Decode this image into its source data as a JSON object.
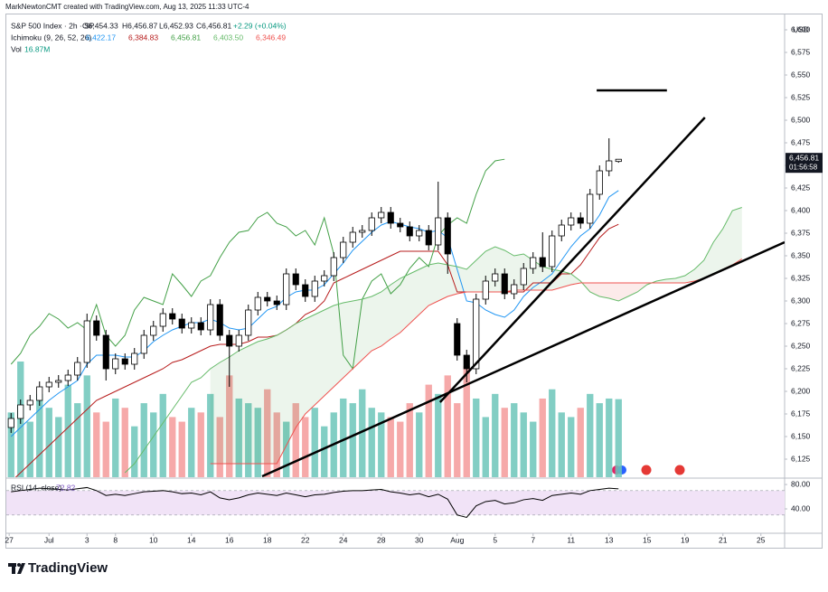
{
  "chart_data": {
    "type": "candlestick",
    "title": "MarkNewtonCMT created with TradingView.com, Aug 13, 2025 11:33 UTC-4",
    "symbol": "S&P 500 Index · 2h · SP",
    "ohlc_labels": [
      "O6,454.33",
      "H6,456.87",
      "L6,452.93",
      "C6,456.81"
    ],
    "change_label": "+2.29 (+0.04%)",
    "currency": "USD",
    "last_price_label": "6,456.81",
    "countdown": "01:56:58",
    "branding": "TradingView",
    "xlim": [
      -0.5,
      81.5
    ],
    "xticks": [
      {
        "value": -0.2,
        "label": "27"
      },
      {
        "value": 4,
        "label": "Jul"
      },
      {
        "value": 8,
        "label": "3"
      },
      {
        "value": 11,
        "label": "8"
      },
      {
        "value": 15,
        "label": "10"
      },
      {
        "value": 19,
        "label": "14"
      },
      {
        "value": 23,
        "label": "16"
      },
      {
        "value": 27,
        "label": "18"
      },
      {
        "value": 31,
        "label": "22"
      },
      {
        "value": 35,
        "label": "24"
      },
      {
        "value": 39,
        "label": "28"
      },
      {
        "value": 43,
        "label": "30"
      },
      {
        "value": 47,
        "label": "Aug"
      },
      {
        "value": 51,
        "label": "5"
      },
      {
        "value": 55,
        "label": "7"
      },
      {
        "value": 59,
        "label": "11"
      },
      {
        "value": 63,
        "label": "13"
      },
      {
        "value": 67,
        "label": "15"
      },
      {
        "value": 71,
        "label": "19"
      },
      {
        "value": 75,
        "label": "21"
      },
      {
        "value": 79,
        "label": "25"
      }
    ],
    "ylim": [
      6105,
      6617
    ],
    "yticks": [
      {
        "value": 6125,
        "label": "6,125"
      },
      {
        "value": 6150,
        "label": "6,150"
      },
      {
        "value": 6175,
        "label": "6,175"
      },
      {
        "value": 6200,
        "label": "6,200"
      },
      {
        "value": 6225,
        "label": "6,225"
      },
      {
        "value": 6250,
        "label": "6,250"
      },
      {
        "value": 6275,
        "label": "6,275"
      },
      {
        "value": 6300,
        "label": "6,300"
      },
      {
        "value": 6325,
        "label": "6,325"
      },
      {
        "value": 6350,
        "label": "6,350"
      },
      {
        "value": 6375,
        "label": "6,375"
      },
      {
        "value": 6400,
        "label": "6,400"
      },
      {
        "value": 6425,
        "label": "6,425"
      },
      {
        "value": 6450,
        "label": "6,450"
      },
      {
        "value": 6475,
        "label": "6,475"
      },
      {
        "value": 6500,
        "label": "6,500"
      },
      {
        "value": 6525,
        "label": "6,525"
      },
      {
        "value": 6550,
        "label": "6,550"
      },
      {
        "value": 6575,
        "label": "6,575"
      },
      {
        "value": 6600,
        "label": "6,600"
      }
    ],
    "grid": false,
    "up_color": "#ffffff",
    "down_color": "#000000",
    "open": [
      6160,
      6170,
      6185,
      6190,
      6205,
      6210,
      6212,
      6218,
      6232,
      6278,
      6262,
      6225,
      6236,
      6230,
      6242,
      6262,
      6272,
      6286,
      6280,
      6270,
      6276,
      6268,
      6296,
      6262,
      6250,
      6262,
      6290,
      6304,
      6300,
      6296,
      6330,
      6318,
      6305,
      6322,
      6328,
      6348,
      6365,
      6376,
      6378,
      6392,
      6398,
      6386,
      6382,
      6372,
      6378,
      6362,
      6392,
      6275,
      6240,
      6225,
      6302,
      6322,
      6330,
      6308,
      6318,
      6336,
      6348,
      6338,
      6372,
      6384,
      6392,
      6386,
      6418,
      6444,
      6454.33
    ],
    "high": [
      6176,
      6191,
      6196,
      6211,
      6216,
      6218,
      6224,
      6238,
      6286,
      6284,
      6268,
      6242,
      6242,
      6248,
      6268,
      6278,
      6292,
      6292,
      6286,
      6282,
      6282,
      6302,
      6302,
      6268,
      6268,
      6296,
      6310,
      6310,
      6306,
      6336,
      6336,
      6324,
      6328,
      6334,
      6354,
      6371,
      6382,
      6384,
      6398,
      6404,
      6404,
      6392,
      6388,
      6384,
      6384,
      6432,
      6398,
      6281,
      6246,
      6308,
      6328,
      6336,
      6336,
      6324,
      6342,
      6354,
      6376,
      6378,
      6390,
      6398,
      6398,
      6424,
      6450,
      6480,
      6456.87
    ],
    "low": [
      6154,
      6164,
      6179,
      6184,
      6199,
      6204,
      6206,
      6212,
      6226,
      6256,
      6212,
      6219,
      6224,
      6224,
      6236,
      6256,
      6266,
      6274,
      6264,
      6264,
      6262,
      6262,
      6256,
      6205,
      6244,
      6256,
      6284,
      6294,
      6290,
      6290,
      6312,
      6299,
      6299,
      6316,
      6322,
      6342,
      6359,
      6370,
      6372,
      6386,
      6380,
      6376,
      6366,
      6366,
      6356,
      6356,
      6330,
      6234,
      6210,
      6219,
      6296,
      6316,
      6302,
      6302,
      6312,
      6330,
      6332,
      6332,
      6366,
      6378,
      6380,
      6380,
      6412,
      6438,
      6452.93
    ],
    "close": [
      6170,
      6185,
      6190,
      6205,
      6210,
      6212,
      6218,
      6232,
      6278,
      6262,
      6225,
      6236,
      6230,
      6242,
      6262,
      6272,
      6286,
      6280,
      6270,
      6276,
      6268,
      6296,
      6262,
      6250,
      6262,
      6290,
      6304,
      6300,
      6296,
      6330,
      6318,
      6305,
      6322,
      6328,
      6348,
      6365,
      6376,
      6378,
      6392,
      6398,
      6386,
      6382,
      6372,
      6378,
      6362,
      6392,
      6352,
      6240,
      6225,
      6302,
      6322,
      6330,
      6308,
      6318,
      6336,
      6348,
      6338,
      6372,
      6384,
      6392,
      6386,
      6418,
      6444,
      6455,
      6456.81
    ],
    "volume": {
      "name": "Vol",
      "value_label": "16.87M",
      "ylim": [
        0,
        100
      ],
      "up_color": "#6cc5ba",
      "down_color": "#f59a9a",
      "values": [
        14,
        25,
        12,
        18,
        15,
        13,
        20,
        16,
        22,
        14,
        12,
        17,
        15,
        11,
        16,
        14,
        18,
        13,
        12,
        15,
        14,
        18,
        13,
        22,
        17,
        16,
        15,
        19,
        14,
        12,
        16,
        13,
        15,
        11,
        14,
        17,
        16,
        19,
        15,
        14,
        13,
        12,
        16,
        14,
        20,
        18,
        22,
        16,
        24,
        17,
        13,
        18,
        15,
        16,
        14,
        12,
        17,
        19,
        14,
        13,
        15,
        18,
        16,
        17,
        16.87
      ]
    },
    "ichimoku": {
      "name": "Ichimoku (9, 26, 52, 26)",
      "cloud_up_color": "#43a047",
      "cloud_down_color": "#e53935",
      "series": [
        {
          "color": "#2196f3",
          "value_label": "6,422.17",
          "values": [
            6150,
            6160,
            6170,
            6180,
            6190,
            6198,
            6205,
            6212,
            6230,
            6240,
            6240,
            6240,
            6238,
            6238,
            6245,
            6255,
            6262,
            6268,
            6272,
            6276,
            6276,
            6280,
            6276,
            6270,
            6268,
            6270,
            6280,
            6290,
            6294,
            6304,
            6310,
            6312,
            6312,
            6318,
            6330,
            6342,
            6356,
            6366,
            6376,
            6384,
            6388,
            6385,
            6382,
            6380,
            6376,
            6378,
            6370,
            6335,
            6300,
            6298,
            6290,
            6285,
            6282,
            6290,
            6305,
            6315,
            6322,
            6330,
            6345,
            6360,
            6372,
            6380,
            6395,
            6415,
            6422.17
          ]
        },
        {
          "color": "#b71c1c",
          "value_label": "6,384.83",
          "values": [
            6100,
            6110,
            6120,
            6130,
            6140,
            6150,
            6160,
            6170,
            6180,
            6190,
            6195,
            6200,
            6205,
            6210,
            6215,
            6220,
            6225,
            6232,
            6235,
            6240,
            6245,
            6250,
            6252,
            6252,
            6252,
            6255,
            6260,
            6260,
            6262,
            6268,
            6275,
            6285,
            6290,
            6300,
            6320,
            6325,
            6330,
            6335,
            6340,
            6345,
            6350,
            6355,
            6355,
            6355,
            6355,
            6355,
            6340,
            6310,
            6310,
            6310,
            6310,
            6310,
            6310,
            6310,
            6310,
            6320,
            6320,
            6320,
            6330,
            6330,
            6340,
            6355,
            6370,
            6380,
            6384.83
          ]
        },
        {
          "color": "#43a047",
          "value_label": "6,456.81",
          "values": [
            6230,
            6242,
            6262,
            6272,
            6286,
            6280,
            6270,
            6276,
            6268,
            6296,
            6262,
            6250,
            6262,
            6290,
            6304,
            6300,
            6296,
            6330,
            6318,
            6305,
            6322,
            6328,
            6348,
            6365,
            6376,
            6378,
            6392,
            6398,
            6386,
            6382,
            6372,
            6378,
            6362,
            6392,
            6352,
            6240,
            6225,
            6302,
            6322,
            6330,
            6308,
            6318,
            6336,
            6348,
            6338,
            6372,
            6384,
            6392,
            6386,
            6418,
            6444,
            6455,
            6456.81
          ]
        },
        {
          "color": "#66bb6a",
          "value_label": "6,403.50",
          "values": [
            null,
            null,
            null,
            null,
            null,
            null,
            null,
            null,
            null,
            null,
            null,
            null,
            6110,
            6120,
            6135,
            6150,
            6165,
            6180,
            6195,
            6210,
            6215,
            6225,
            6232,
            6238,
            6245,
            6250,
            6255,
            6258,
            6262,
            6268,
            6275,
            6280,
            6285,
            6290,
            6295,
            6298,
            6300,
            6302,
            6305,
            6310,
            6318,
            6325,
            6330,
            6335,
            6340,
            6342,
            6340,
            6338,
            6335,
            6345,
            6355,
            6360,
            6356,
            6350,
            6352,
            6345,
            6338,
            6335,
            6333,
            6330,
            6322,
            6310,
            6305,
            6303,
            6300,
            6305,
            6310,
            6318,
            6322,
            6324,
            6325,
            6328,
            6335,
            6345,
            6365,
            6380,
            6400,
            6403.5
          ]
        },
        {
          "color": "#ef5350",
          "value_label": "6,346.49",
          "values": [
            null,
            null,
            null,
            null,
            null,
            null,
            null,
            null,
            null,
            null,
            null,
            null,
            null,
            null,
            null,
            null,
            null,
            null,
            null,
            null,
            null,
            6120,
            6120,
            6120,
            6120,
            6120,
            6120,
            6120,
            6120,
            6140,
            6160,
            6175,
            6185,
            6195,
            6205,
            6215,
            6225,
            6235,
            6245,
            6250,
            6258,
            6265,
            6275,
            6285,
            6295,
            6300,
            6305,
            6308,
            6310,
            6310,
            6310,
            6310,
            6310,
            6312,
            6312,
            6312,
            6312,
            6312,
            6315,
            6318,
            6320,
            6320,
            6320,
            6320,
            6320,
            6320,
            6320,
            6320,
            6320,
            6320,
            6320,
            6320,
            6322,
            6325,
            6330,
            6335,
            6340,
            6346.49
          ]
        }
      ]
    },
    "rsi": {
      "name": "RSI (14, close)",
      "value_label": "72.82",
      "color": "#000000",
      "ylim": [
        3,
        89
      ],
      "yticks": [
        {
          "value": 80,
          "label": "80.00"
        },
        {
          "value": 40,
          "label": "40.00"
        }
      ],
      "band": [
        30,
        70
      ],
      "band_color": "#f1e3f7",
      "values": [
        68,
        70,
        72,
        74,
        73,
        72,
        71,
        73,
        75,
        70,
        62,
        64,
        62,
        65,
        68,
        69,
        70,
        68,
        65,
        66,
        63,
        68,
        58,
        55,
        58,
        63,
        66,
        64,
        62,
        66,
        63,
        60,
        63,
        64,
        67,
        69,
        70,
        70,
        71,
        72,
        68,
        66,
        63,
        65,
        60,
        64,
        56,
        30,
        26,
        45,
        52,
        54,
        48,
        50,
        55,
        57,
        54,
        62,
        64,
        66,
        64,
        70,
        72,
        74,
        72.82
      ]
    },
    "drawing_color": "#000000",
    "drawings": [
      {
        "x": [
          45.2,
          73.1
        ],
        "y": [
          6188,
          6503
        ]
      },
      {
        "x": [
          26.45,
          81.5
        ],
        "y": [
          6106,
          6365
        ]
      },
      {
        "x": [
          61.7,
          69.1
        ],
        "y": [
          6533,
          6533
        ]
      }
    ]
  }
}
